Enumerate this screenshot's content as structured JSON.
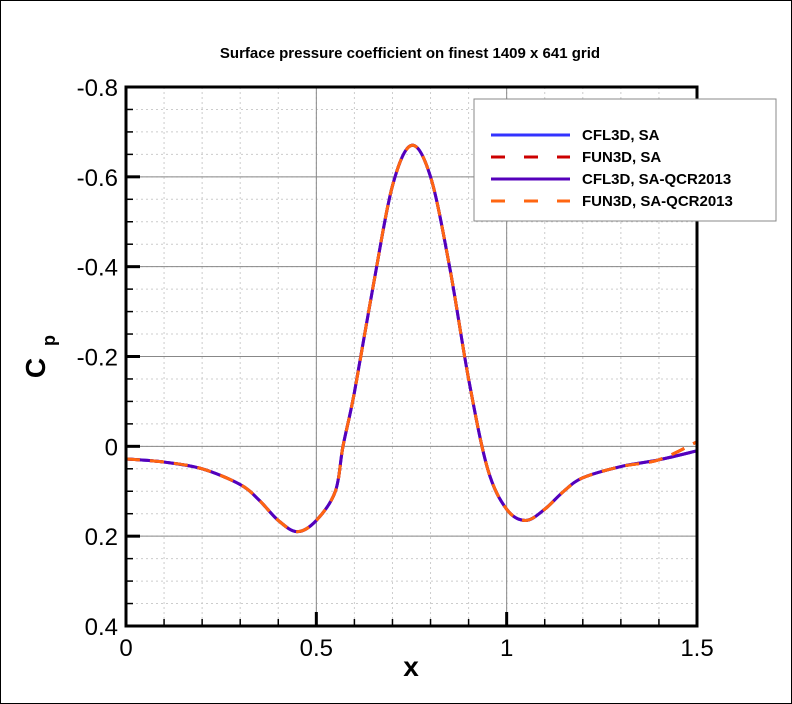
{
  "chart_data": {
    "type": "line",
    "title": "Surface pressure coefficient on finest 1409 x 641 grid",
    "xlabel": "x",
    "ylabel": "C",
    "ylabel_sub": "p",
    "xlim": [
      0,
      1.5
    ],
    "ylim": [
      -0.8,
      0.4
    ],
    "y_inverted": true,
    "grid": true,
    "legend_position": "top-right",
    "x_ticks": [
      "0",
      "0.5",
      "1",
      "1.5"
    ],
    "y_ticks": [
      "-0.8",
      "-0.6",
      "-0.4",
      "-0.2",
      "0",
      "0.2",
      "0.4"
    ],
    "x": [
      0,
      0.1,
      0.2,
      0.3,
      0.35,
      0.4,
      0.45,
      0.5,
      0.55,
      0.57,
      0.6,
      0.65,
      0.7,
      0.75,
      0.8,
      0.85,
      0.9,
      0.95,
      1.0,
      1.05,
      1.1,
      1.15,
      1.2,
      1.3,
      1.4,
      1.5
    ],
    "series": [
      {
        "name": "CFL3D, SA",
        "color": "#3333ff",
        "dash": false,
        "y": [
          0.028,
          0.035,
          0.05,
          0.085,
          0.12,
          0.165,
          0.19,
          0.165,
          0.1,
          0.0,
          -0.12,
          -0.36,
          -0.58,
          -0.67,
          -0.6,
          -0.4,
          -0.15,
          0.05,
          0.14,
          0.165,
          0.14,
          0.1,
          0.07,
          0.045,
          0.03,
          0.01
        ]
      },
      {
        "name": "FUN3D, SA",
        "color": "#cc0000",
        "dash": true,
        "y": [
          0.028,
          0.035,
          0.05,
          0.085,
          0.12,
          0.165,
          0.19,
          0.165,
          0.1,
          0.0,
          -0.12,
          -0.36,
          -0.58,
          -0.67,
          -0.6,
          -0.4,
          -0.15,
          0.05,
          0.14,
          0.165,
          0.14,
          0.1,
          0.07,
          0.045,
          0.03,
          -0.01
        ]
      },
      {
        "name": "CFL3D, SA-QCR2013",
        "color": "#5500bb",
        "dash": false,
        "y": [
          0.028,
          0.035,
          0.05,
          0.085,
          0.12,
          0.165,
          0.19,
          0.165,
          0.1,
          0.0,
          -0.12,
          -0.36,
          -0.58,
          -0.67,
          -0.6,
          -0.4,
          -0.15,
          0.05,
          0.14,
          0.165,
          0.14,
          0.1,
          0.07,
          0.045,
          0.03,
          0.01
        ]
      },
      {
        "name": "FUN3D, SA-QCR2013",
        "color": "#ff6611",
        "dash": true,
        "y": [
          0.028,
          0.035,
          0.05,
          0.085,
          0.12,
          0.165,
          0.19,
          0.165,
          0.1,
          0.0,
          -0.12,
          -0.36,
          -0.58,
          -0.67,
          -0.6,
          -0.4,
          -0.15,
          0.05,
          0.14,
          0.165,
          0.14,
          0.1,
          0.07,
          0.045,
          0.03,
          -0.01
        ]
      }
    ]
  }
}
